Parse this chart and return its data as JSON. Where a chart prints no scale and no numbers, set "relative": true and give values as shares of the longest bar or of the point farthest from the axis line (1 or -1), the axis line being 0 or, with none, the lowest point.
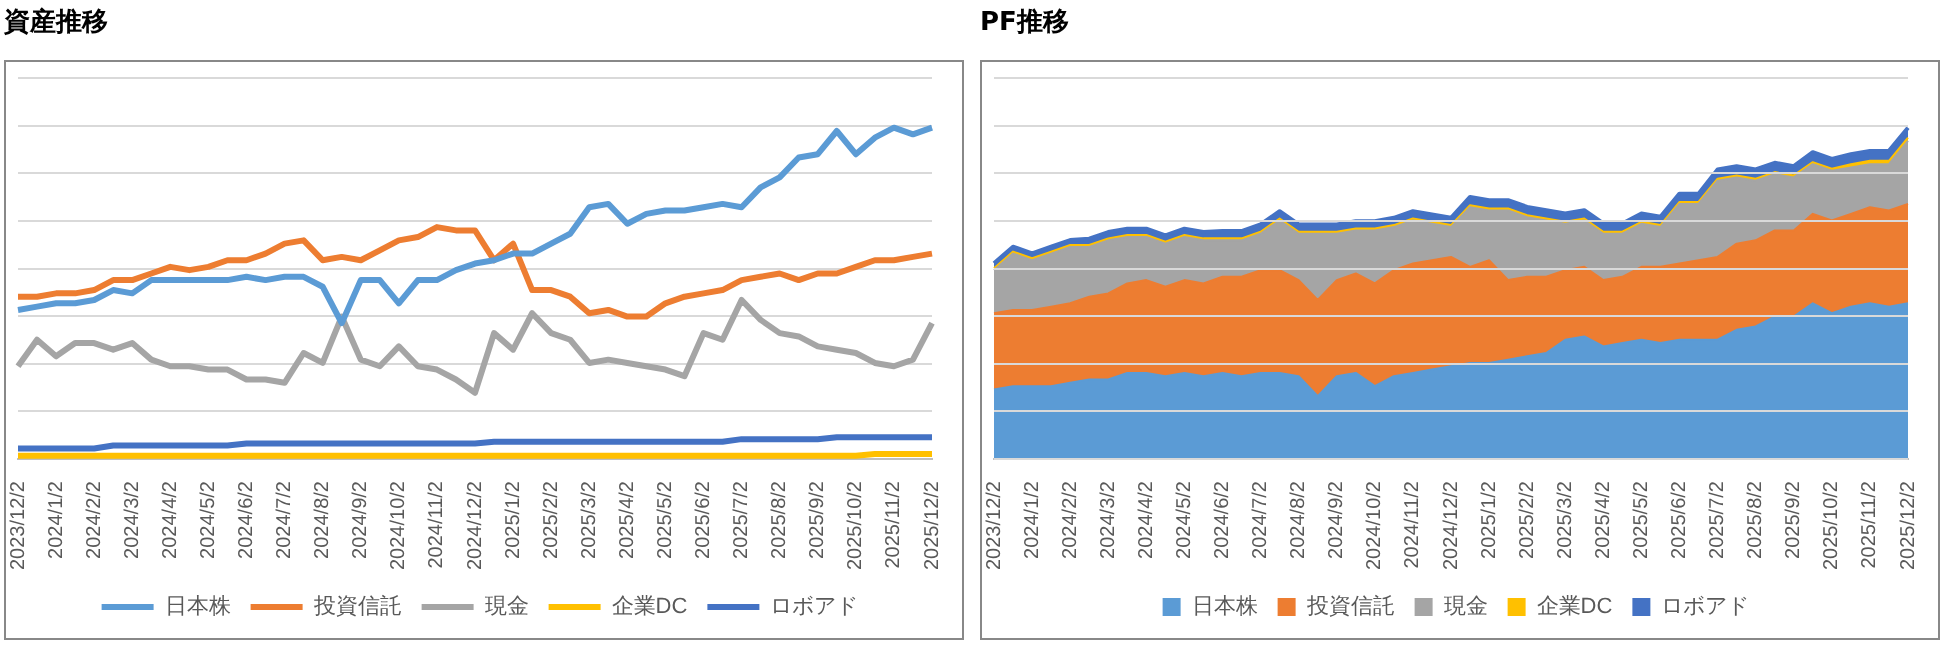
{
  "chart_data": [
    {
      "type": "line",
      "title": "資産推移",
      "relative": true,
      "grid": "y",
      "legend": "bottom",
      "marker": "none",
      "categories": [
        "2023/12/2",
        null,
        "2024/1/2",
        null,
        "2024/2/2",
        null,
        "2024/3/2",
        null,
        "2024/4/2",
        null,
        "2024/5/2",
        null,
        "2024/6/2",
        null,
        "2024/7/2",
        null,
        "2024/8/2",
        null,
        "2024/9/2",
        null,
        "2024/10/2",
        null,
        "2024/11/2",
        null,
        "2024/12/2",
        null,
        "2025/1/2",
        null,
        "2025/2/2",
        null,
        "2025/3/2",
        null,
        "2025/4/2",
        null,
        "2025/5/2",
        null,
        "2025/6/2",
        null,
        "2025/7/2",
        null,
        "2025/8/2",
        null,
        "2025/9/2",
        null,
        "2025/10/2",
        null,
        "2025/11/2",
        null,
        "2025/12/2"
      ],
      "series": [
        {
          "name": "日本株",
          "color": "#5b9bd5",
          "values": [
            0.45,
            0.46,
            0.47,
            0.47,
            0.48,
            0.51,
            0.5,
            0.54,
            0.54,
            0.54,
            0.54,
            0.54,
            0.55,
            0.54,
            0.55,
            0.55,
            0.52,
            0.41,
            0.54,
            0.54,
            0.47,
            0.54,
            0.54,
            0.57,
            0.59,
            0.6,
            0.62,
            0.62,
            0.65,
            0.68,
            0.76,
            0.77,
            0.71,
            0.74,
            0.75,
            0.75,
            0.76,
            0.77,
            0.76,
            0.82,
            0.85,
            0.91,
            0.92,
            0.99,
            0.92,
            0.97,
            1,
            0.98,
            1
          ]
        },
        {
          "name": "投資信託",
          "color": "#ed7d31",
          "values": [
            0.49,
            0.49,
            0.5,
            0.5,
            0.51,
            0.54,
            0.54,
            0.56,
            0.58,
            0.57,
            0.58,
            0.6,
            0.6,
            0.62,
            0.65,
            0.66,
            0.6,
            0.61,
            0.6,
            0.63,
            0.66,
            0.67,
            0.7,
            0.69,
            0.69,
            0.6,
            0.65,
            0.51,
            0.51,
            0.49,
            0.44,
            0.45,
            0.43,
            0.43,
            0.47,
            0.49,
            0.5,
            0.51,
            0.54,
            0.55,
            0.56,
            0.54,
            0.56,
            0.56,
            0.58,
            0.6,
            0.6,
            0.61,
            0.62
          ]
        },
        {
          "name": "現金",
          "color": "#a5a5a5",
          "values": [
            0.28,
            0.36,
            0.31,
            0.35,
            0.35,
            0.33,
            0.35,
            0.3,
            0.28,
            0.28,
            0.27,
            0.27,
            0.24,
            0.24,
            0.23,
            0.32,
            0.29,
            0.43,
            0.3,
            0.28,
            0.34,
            0.28,
            0.27,
            0.24,
            0.2,
            0.38,
            0.33,
            0.44,
            0.38,
            0.36,
            0.29,
            0.3,
            0.29,
            0.28,
            0.27,
            0.25,
            0.38,
            0.36,
            0.48,
            0.42,
            0.38,
            0.37,
            0.34,
            0.33,
            0.32,
            0.29,
            0.28,
            0.3,
            0.41
          ]
        },
        {
          "name": "企業DC",
          "color": "#ffc000",
          "values": [
            0.01,
            0.01,
            0.01,
            0.01,
            0.01,
            0.01,
            0.01,
            0.01,
            0.01,
            0.01,
            0.01,
            0.01,
            0.01,
            0.01,
            0.01,
            0.01,
            0.01,
            0.01,
            0.01,
            0.01,
            0.01,
            0.01,
            0.01,
            0.01,
            0.01,
            0.01,
            0.01,
            0.01,
            0.01,
            0.01,
            0.01,
            0.01,
            0.01,
            0.01,
            0.01,
            0.01,
            0.01,
            0.01,
            0.01,
            0.01,
            0.01,
            0.01,
            0.01,
            0.01,
            0.01,
            0.015,
            0.015,
            0.015,
            0.015
          ]
        },
        {
          "name": "ロボアド",
          "color": "#4472c4",
          "values": [
            0.032,
            0.032,
            0.032,
            0.032,
            0.032,
            0.041,
            0.041,
            0.041,
            0.041,
            0.041,
            0.041,
            0.041,
            0.047,
            0.047,
            0.047,
            0.047,
            0.047,
            0.047,
            0.047,
            0.047,
            0.047,
            0.047,
            0.047,
            0.047,
            0.047,
            0.052,
            0.052,
            0.052,
            0.052,
            0.052,
            0.052,
            0.052,
            0.052,
            0.052,
            0.052,
            0.052,
            0.052,
            0.052,
            0.06,
            0.06,
            0.06,
            0.06,
            0.06,
            0.066,
            0.066,
            0.066,
            0.066,
            0.066,
            0.066
          ]
        }
      ]
    },
    {
      "type": "area",
      "title": "PF推移",
      "relative": true,
      "stacked": true,
      "grid": "y",
      "legend": "bottom",
      "categories": [
        "2023/12/2",
        null,
        "2024/1/2",
        null,
        "2024/2/2",
        null,
        "2024/3/2",
        null,
        "2024/4/2",
        null,
        "2024/5/2",
        null,
        "2024/6/2",
        null,
        "2024/7/2",
        null,
        "2024/8/2",
        null,
        "2024/9/2",
        null,
        "2024/10/2",
        null,
        "2024/11/2",
        null,
        "2024/12/2",
        null,
        "2025/1/2",
        null,
        "2025/2/2",
        null,
        "2025/3/2",
        null,
        "2025/4/2",
        null,
        "2025/5/2",
        null,
        "2025/6/2",
        null,
        "2025/7/2",
        null,
        "2025/8/2",
        null,
        "2025/9/2",
        null,
        "2025/10/2",
        null,
        "2025/11/2",
        null,
        "2025/12/2"
      ],
      "series": [
        {
          "name": "日本株",
          "color": "#5b9bd5",
          "values": [
            0.21,
            0.22,
            0.22,
            0.22,
            0.23,
            0.24,
            0.24,
            0.26,
            0.26,
            0.25,
            0.26,
            0.25,
            0.26,
            0.25,
            0.26,
            0.26,
            0.25,
            0.19,
            0.25,
            0.26,
            0.22,
            0.25,
            0.26,
            0.27,
            0.28,
            0.29,
            0.29,
            0.3,
            0.31,
            0.32,
            0.36,
            0.37,
            0.34,
            0.35,
            0.36,
            0.35,
            0.36,
            0.36,
            0.36,
            0.39,
            0.4,
            0.43,
            0.43,
            0.47,
            0.44,
            0.46,
            0.47,
            0.46,
            0.47
          ]
        },
        {
          "name": "投資信託",
          "color": "#ed7d31",
          "values": [
            0.23,
            0.23,
            0.23,
            0.24,
            0.24,
            0.25,
            0.26,
            0.27,
            0.28,
            0.27,
            0.28,
            0.28,
            0.29,
            0.3,
            0.31,
            0.31,
            0.29,
            0.29,
            0.29,
            0.3,
            0.31,
            0.32,
            0.33,
            0.33,
            0.33,
            0.29,
            0.31,
            0.24,
            0.24,
            0.23,
            0.21,
            0.21,
            0.2,
            0.2,
            0.22,
            0.23,
            0.23,
            0.24,
            0.25,
            0.26,
            0.26,
            0.26,
            0.26,
            0.27,
            0.28,
            0.28,
            0.29,
            0.29,
            0.3
          ]
        },
        {
          "name": "現金",
          "color": "#a5a5a5",
          "values": [
            0.13,
            0.17,
            0.15,
            0.16,
            0.17,
            0.15,
            0.16,
            0.14,
            0.13,
            0.13,
            0.13,
            0.13,
            0.11,
            0.11,
            0.11,
            0.15,
            0.14,
            0.2,
            0.14,
            0.13,
            0.16,
            0.13,
            0.13,
            0.11,
            0.09,
            0.18,
            0.15,
            0.21,
            0.18,
            0.17,
            0.14,
            0.14,
            0.14,
            0.13,
            0.13,
            0.12,
            0.18,
            0.17,
            0.23,
            0.2,
            0.18,
            0.17,
            0.16,
            0.15,
            0.15,
            0.14,
            0.13,
            0.14,
            0.19
          ]
        },
        {
          "name": "企業DC",
          "color": "#ffc000",
          "values": [
            0.006,
            0.006,
            0.006,
            0.006,
            0.006,
            0.006,
            0.006,
            0.006,
            0.006,
            0.006,
            0.006,
            0.006,
            0.006,
            0.006,
            0.006,
            0.006,
            0.006,
            0.006,
            0.006,
            0.006,
            0.006,
            0.006,
            0.006,
            0.006,
            0.006,
            0.006,
            0.006,
            0.006,
            0.006,
            0.006,
            0.006,
            0.006,
            0.006,
            0.006,
            0.006,
            0.006,
            0.006,
            0.006,
            0.006,
            0.006,
            0.006,
            0.006,
            0.006,
            0.006,
            0.006,
            0.01,
            0.01,
            0.01,
            0.01
          ]
        },
        {
          "name": "ロボアド",
          "color": "#4472c4",
          "values": [
            0.015,
            0.015,
            0.015,
            0.015,
            0.015,
            0.019,
            0.019,
            0.019,
            0.019,
            0.019,
            0.019,
            0.019,
            0.022,
            0.022,
            0.022,
            0.022,
            0.022,
            0.022,
            0.022,
            0.022,
            0.022,
            0.022,
            0.022,
            0.022,
            0.022,
            0.025,
            0.025,
            0.025,
            0.025,
            0.025,
            0.025,
            0.025,
            0.025,
            0.025,
            0.025,
            0.025,
            0.025,
            0.025,
            0.028,
            0.028,
            0.028,
            0.028,
            0.028,
            0.03,
            0.03,
            0.03,
            0.03,
            0.03,
            0.03
          ]
        }
      ]
    }
  ]
}
